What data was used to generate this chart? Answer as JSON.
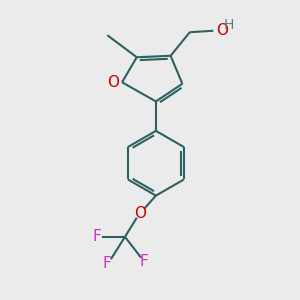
{
  "background_color": "#ebebeb",
  "bond_color": "#2d6060",
  "oxygen_color": "#cc0000",
  "fluorine_color": "#cc33cc",
  "hydroxyl_h_color": "#5a8080",
  "line_width": 1.5,
  "figsize": [
    3.0,
    3.0
  ],
  "dpi": 100,
  "xlim": [
    0,
    10
  ],
  "ylim": [
    0,
    10
  ]
}
